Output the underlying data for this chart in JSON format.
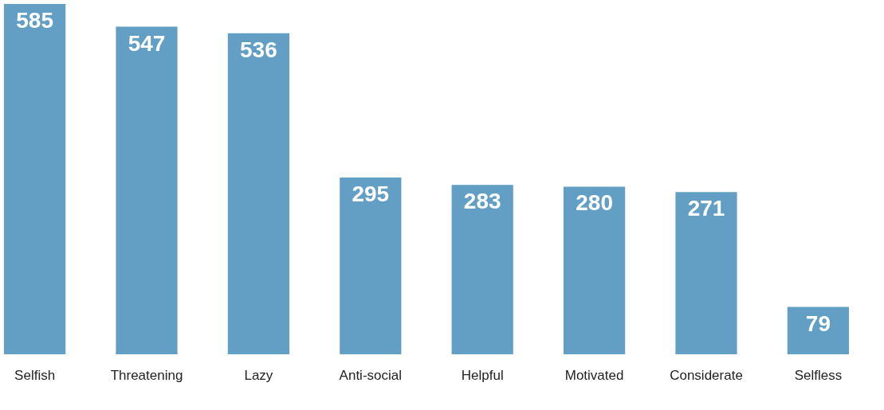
{
  "chart_data": {
    "type": "bar",
    "categories": [
      "Selfish",
      "Threatening",
      "Lazy",
      "Anti-social",
      "Helpful",
      "Motivated",
      "Considerate",
      "Selfless"
    ],
    "values": [
      585,
      547,
      536,
      295,
      283,
      280,
      271,
      79
    ],
    "color": "#639fc4",
    "data_labels": true
  }
}
